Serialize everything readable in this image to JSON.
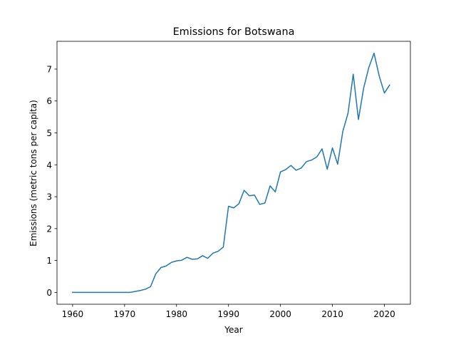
{
  "chart_data": {
    "type": "line",
    "title": "Emissions for Botswana",
    "xlabel": "Year",
    "ylabel": "Emissions (metric tons per capita)",
    "xlim": [
      1957,
      2025
    ],
    "ylim": [
      -0.37,
      7.87
    ],
    "xticks": [
      1960,
      1970,
      1980,
      1990,
      2000,
      2010,
      2020
    ],
    "yticks": [
      0,
      1,
      2,
      3,
      4,
      5,
      6,
      7
    ],
    "grid": false,
    "line_color": "#1f77b4",
    "series": [
      {
        "x": [
          1960,
          1961,
          1962,
          1963,
          1964,
          1965,
          1966,
          1967,
          1968,
          1969,
          1970,
          1971,
          1972,
          1973,
          1974,
          1975,
          1976,
          1977,
          1978,
          1979,
          1980,
          1981,
          1982,
          1983,
          1984,
          1985,
          1986,
          1987,
          1988,
          1989,
          1990,
          1991,
          1992,
          1993,
          1994,
          1995,
          1996,
          1997,
          1998,
          1999,
          2000,
          2001,
          2002,
          2003,
          2004,
          2005,
          2006,
          2007,
          2008,
          2009,
          2010,
          2011,
          2012,
          2013,
          2014,
          2015,
          2016,
          2017,
          2018,
          2019,
          2020,
          2021
        ],
        "values": [
          0,
          0,
          0,
          0,
          0,
          0,
          0,
          0,
          0,
          0,
          0,
          0,
          0.03,
          0.06,
          0.1,
          0.18,
          0.58,
          0.78,
          0.83,
          0.94,
          0.99,
          1.01,
          1.1,
          1.04,
          1.05,
          1.15,
          1.07,
          1.23,
          1.29,
          1.42,
          2.7,
          2.65,
          2.78,
          3.2,
          3.03,
          3.05,
          2.76,
          2.8,
          3.34,
          3.15,
          3.78,
          3.85,
          3.98,
          3.83,
          3.9,
          4.1,
          4.15,
          4.25,
          4.5,
          3.86,
          4.53,
          4.02,
          5.05,
          5.62,
          6.84,
          5.42,
          6.4,
          7.05,
          7.5,
          6.78,
          6.25,
          6.5
        ]
      }
    ]
  }
}
